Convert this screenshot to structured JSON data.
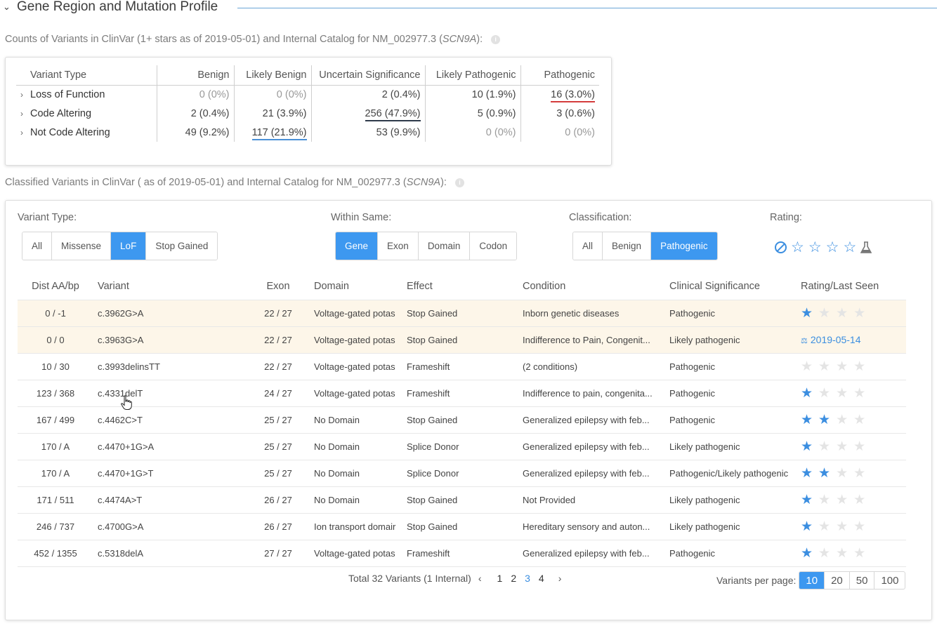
{
  "section": {
    "title": "Gene Region and Mutation Profile"
  },
  "counts": {
    "subtitle_prefix": "Counts of Variants in ClinVar (1+ stars as of 2019-05-01) and Internal Catalog for NM_002977.3 (",
    "gene": "SCN9A",
    "subtitle_suffix": "):",
    "headers": [
      "Variant Type",
      "Benign",
      "Likely Benign",
      "Uncertain Significance",
      "Likely Pathogenic",
      "Pathogenic"
    ],
    "rows": [
      {
        "type": "Loss of Function",
        "cells": [
          "0 (0%)",
          "0 (0%)",
          "2 (0.4%)",
          "10 (1.9%)",
          "16 (3.0%)"
        ]
      },
      {
        "type": "Code Altering",
        "cells": [
          "2 (0.4%)",
          "21 (3.9%)",
          "256 (47.9%)",
          "5 (0.9%)",
          "3 (0.6%)"
        ]
      },
      {
        "type": "Not Code Altering",
        "cells": [
          "49 (9.2%)",
          "117 (21.9%)",
          "53 (9.9%)",
          "0 (0%)",
          "0 (0%)"
        ]
      }
    ]
  },
  "classified": {
    "subtitle_prefix": "Classified Variants in ClinVar ( as of 2019-05-01) and Internal Catalog for NM_002977.3 (",
    "gene": "SCN9A",
    "subtitle_suffix": "):"
  },
  "filters": {
    "variant_type": {
      "label": "Variant Type:",
      "options": [
        "All",
        "Missense",
        "LoF",
        "Stop Gained"
      ],
      "selected": "LoF"
    },
    "within_same": {
      "label": "Within Same:",
      "options": [
        "Gene",
        "Exon",
        "Domain",
        "Codon"
      ],
      "selected": "Gene"
    },
    "classification": {
      "label": "Classification:",
      "options": [
        "All",
        "Benign",
        "Pathogenic"
      ],
      "selected": "Pathogenic"
    },
    "rating": {
      "label": "Rating:"
    }
  },
  "table": {
    "headers": {
      "dist": "Dist AA/bp",
      "variant": "Variant",
      "exon": "Exon",
      "domain": "Domain",
      "effect": "Effect",
      "condition": "Condition",
      "significance": "Clinical Significance",
      "rating": "Rating/Last Seen"
    },
    "rows": [
      {
        "dist": "0 / -1",
        "variant": "c.3962G>A",
        "variant_link": true,
        "exon": "22 / 27",
        "domain": "Voltage-gated potas",
        "domain_muted": false,
        "effect": "Stop Gained",
        "condition": "Inborn genetic diseases",
        "condition_muted": false,
        "significance": "Pathogenic",
        "sig_class": "path",
        "stars": 1,
        "last_seen": "",
        "highlight": true
      },
      {
        "dist": "0 / 0",
        "variant": "c.3963G>A",
        "variant_link": false,
        "exon": "22 / 27",
        "domain": "Voltage-gated potas",
        "domain_muted": false,
        "effect": "Stop Gained",
        "condition": "Indifference to Pain, Congenit...",
        "condition_muted": false,
        "significance": "Likely pathogenic",
        "sig_class": "lpath",
        "stars": -1,
        "last_seen": "2019-05-14",
        "highlight": true
      },
      {
        "dist": "10 / 30",
        "variant": "c.3993delinsTT",
        "variant_link": true,
        "exon": "22 / 27",
        "domain": "Voltage-gated potas",
        "domain_muted": false,
        "effect": "Frameshift",
        "condition": "(2 conditions)",
        "condition_muted": false,
        "significance": "Pathogenic",
        "sig_class": "path",
        "stars": 0,
        "last_seen": "",
        "highlight": false
      },
      {
        "dist": "123 / 368",
        "variant": "c.4331delT",
        "variant_link": true,
        "exon": "24 / 27",
        "domain": "Voltage-gated potas",
        "domain_muted": false,
        "effect": "Frameshift",
        "condition": "Indifference to pain, congenita...",
        "condition_muted": false,
        "significance": "Pathogenic",
        "sig_class": "path",
        "stars": 1,
        "last_seen": "",
        "highlight": false
      },
      {
        "dist": "167 / 499",
        "variant": "c.4462C>T",
        "variant_link": true,
        "exon": "25 / 27",
        "domain": "No Domain",
        "domain_muted": true,
        "effect": "Stop Gained",
        "condition": "Generalized epilepsy with feb...",
        "condition_muted": false,
        "significance": "Pathogenic",
        "sig_class": "path",
        "stars": 2,
        "last_seen": "",
        "highlight": false
      },
      {
        "dist": "170 / A",
        "variant": "c.4470+1G>A",
        "variant_link": true,
        "exon": "25 / 27",
        "domain": "No Domain",
        "domain_muted": true,
        "effect": "Splice Donor",
        "condition": "Generalized epilepsy with feb...",
        "condition_muted": false,
        "significance": "Likely pathogenic",
        "sig_class": "lpath",
        "stars": 1,
        "last_seen": "",
        "highlight": false
      },
      {
        "dist": "170 / A",
        "variant": "c.4470+1G>T",
        "variant_link": true,
        "exon": "25 / 27",
        "domain": "No Domain",
        "domain_muted": true,
        "effect": "Splice Donor",
        "condition": "Generalized epilepsy with feb...",
        "condition_muted": false,
        "significance": "Pathogenic/Likely pathogenic",
        "sig_class": "lpath",
        "stars": 2,
        "last_seen": "",
        "highlight": false
      },
      {
        "dist": "171 / 511",
        "variant": "c.4474A>T",
        "variant_link": true,
        "exon": "26 / 27",
        "domain": "No Domain",
        "domain_muted": true,
        "effect": "Stop Gained",
        "condition": "Not Provided",
        "condition_muted": true,
        "significance": "Likely pathogenic",
        "sig_class": "lpath",
        "stars": 1,
        "last_seen": "",
        "highlight": false
      },
      {
        "dist": "246 / 737",
        "variant": "c.4700G>A",
        "variant_link": true,
        "exon": "26 / 27",
        "domain": "Ion transport domair",
        "domain_muted": false,
        "effect": "Stop Gained",
        "condition": "Hereditary sensory and auton...",
        "condition_muted": false,
        "significance": "Likely pathogenic",
        "sig_class": "lpath",
        "stars": 1,
        "last_seen": "",
        "highlight": false
      },
      {
        "dist": "452 / 1355",
        "variant": "c.5318delA",
        "variant_link": true,
        "exon": "27 / 27",
        "domain": "Voltage-gated potas",
        "domain_muted": false,
        "effect": "Frameshift",
        "condition": "Generalized epilepsy with feb...",
        "condition_muted": false,
        "significance": "Pathogenic",
        "sig_class": "path",
        "stars": 1,
        "last_seen": "",
        "highlight": false
      }
    ]
  },
  "pagination": {
    "total": "Total 32 Variants (1 Internal)",
    "pages": [
      "1",
      "2",
      "3",
      "4"
    ],
    "current": "3",
    "prev": "‹",
    "next": "›"
  },
  "per_page": {
    "label": "Variants per page:",
    "options": [
      "10",
      "20",
      "50",
      "100"
    ],
    "selected": "10"
  },
  "colors": {
    "accent": "#3d98f0",
    "pathogenic": "#d43c3c",
    "likely_pathogenic": "#e8861e",
    "highlight_row": "#fdf6e9"
  }
}
